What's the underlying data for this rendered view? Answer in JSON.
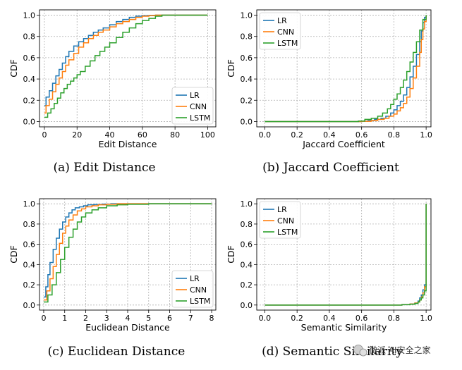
{
  "colors": {
    "LR": "#1f77b4",
    "CNN": "#ff7f0e",
    "LSTM": "#2ca02c",
    "grid": "#b0b0b0"
  },
  "watermark": "微派 AI安全之家",
  "watermark_icon": "wechat-icon",
  "chart_data": [
    {
      "id": "a",
      "type": "line",
      "caption": "(a) Edit Distance",
      "xlabel": "Edit Distance",
      "ylabel": "CDF",
      "xlim": [
        -3,
        105
      ],
      "ylim": [
        -0.05,
        1.05
      ],
      "xticks": [
        0,
        20,
        40,
        60,
        80,
        100
      ],
      "xtick_labels": [
        "0",
        "20",
        "40",
        "60",
        "80",
        "100"
      ],
      "yticks": [
        0.0,
        0.2,
        0.4,
        0.6,
        0.8,
        1.0
      ],
      "ytick_labels": [
        "0.0",
        "0.2",
        "0.4",
        "0.6",
        "0.8",
        "1.0"
      ],
      "grid": true,
      "legend_position": "lower-right",
      "series": [
        {
          "name": "LR",
          "x": [
            0,
            1,
            3,
            5,
            7,
            9,
            11,
            13,
            15,
            18,
            21,
            24,
            27,
            30,
            33,
            36,
            40,
            44,
            48,
            52,
            56,
            60,
            64,
            68,
            100
          ],
          "y": [
            0.15,
            0.23,
            0.29,
            0.36,
            0.43,
            0.49,
            0.55,
            0.61,
            0.66,
            0.71,
            0.75,
            0.78,
            0.81,
            0.84,
            0.86,
            0.88,
            0.91,
            0.94,
            0.96,
            0.98,
            0.99,
            0.995,
            0.998,
            1.0,
            1.0
          ]
        },
        {
          "name": "CNN",
          "x": [
            0,
            1,
            3,
            5,
            7,
            9,
            11,
            13,
            15,
            18,
            21,
            24,
            27,
            30,
            33,
            36,
            40,
            44,
            48,
            52,
            56,
            60,
            64,
            68,
            100
          ],
          "y": [
            0.08,
            0.15,
            0.21,
            0.28,
            0.35,
            0.41,
            0.47,
            0.53,
            0.58,
            0.64,
            0.7,
            0.74,
            0.78,
            0.81,
            0.84,
            0.86,
            0.89,
            0.92,
            0.94,
            0.96,
            0.98,
            0.99,
            0.995,
            1.0,
            1.0
          ]
        },
        {
          "name": "LSTM",
          "x": [
            0,
            2,
            4,
            6,
            8,
            10,
            12,
            14,
            16,
            18,
            20,
            22,
            25,
            28,
            31,
            34,
            37,
            40,
            44,
            48,
            52,
            56,
            60,
            64,
            68,
            72,
            100
          ],
          "y": [
            0.04,
            0.08,
            0.12,
            0.17,
            0.22,
            0.27,
            0.31,
            0.35,
            0.38,
            0.41,
            0.44,
            0.47,
            0.52,
            0.57,
            0.62,
            0.66,
            0.7,
            0.74,
            0.79,
            0.84,
            0.88,
            0.92,
            0.95,
            0.97,
            0.99,
            1.0,
            1.0
          ]
        }
      ]
    },
    {
      "id": "b",
      "type": "line",
      "caption": "(b) Jaccard Coefficient",
      "xlabel": "Jaccard Coefficient",
      "ylabel": "CDF",
      "xlim": [
        -0.05,
        1.03
      ],
      "ylim": [
        -0.05,
        1.05
      ],
      "xticks": [
        0.0,
        0.2,
        0.4,
        0.6,
        0.8,
        1.0
      ],
      "xtick_labels": [
        "0.0",
        "0.2",
        "0.4",
        "0.6",
        "0.8",
        "1.0"
      ],
      "yticks": [
        0.0,
        0.2,
        0.4,
        0.6,
        0.8,
        1.0
      ],
      "ytick_labels": [
        "0.0",
        "0.2",
        "0.4",
        "0.6",
        "0.8",
        "1.0"
      ],
      "grid": true,
      "legend_position": "upper-left",
      "series": [
        {
          "name": "LR",
          "x": [
            0.0,
            0.6,
            0.64,
            0.68,
            0.72,
            0.75,
            0.78,
            0.8,
            0.82,
            0.84,
            0.86,
            0.88,
            0.9,
            0.92,
            0.94,
            0.96,
            0.97,
            0.98,
            0.99,
            1.0
          ],
          "y": [
            0.0,
            0.003,
            0.01,
            0.02,
            0.03,
            0.05,
            0.08,
            0.11,
            0.15,
            0.19,
            0.25,
            0.32,
            0.42,
            0.52,
            0.63,
            0.75,
            0.85,
            0.93,
            0.98,
            1.0
          ]
        },
        {
          "name": "CNN",
          "x": [
            0.0,
            0.6,
            0.66,
            0.7,
            0.74,
            0.77,
            0.8,
            0.82,
            0.84,
            0.86,
            0.88,
            0.9,
            0.92,
            0.94,
            0.96,
            0.97,
            0.98,
            0.99,
            1.0
          ],
          "y": [
            0.0,
            0.002,
            0.01,
            0.02,
            0.03,
            0.05,
            0.07,
            0.1,
            0.13,
            0.17,
            0.23,
            0.31,
            0.41,
            0.52,
            0.65,
            0.77,
            0.87,
            0.94,
            1.0
          ]
        },
        {
          "name": "LSTM",
          "x": [
            0.0,
            0.58,
            0.62,
            0.66,
            0.7,
            0.73,
            0.76,
            0.78,
            0.8,
            0.82,
            0.84,
            0.86,
            0.88,
            0.9,
            0.92,
            0.94,
            0.96,
            0.98,
            1.0
          ],
          "y": [
            0.0,
            0.005,
            0.02,
            0.03,
            0.05,
            0.08,
            0.12,
            0.16,
            0.21,
            0.26,
            0.32,
            0.39,
            0.47,
            0.56,
            0.65,
            0.75,
            0.86,
            0.96,
            1.0
          ]
        }
      ]
    },
    {
      "id": "c",
      "type": "line",
      "caption": "(c) Euclidean Distance",
      "xlabel": "Euclidean Distance",
      "ylabel": "CDF",
      "xlim": [
        -0.2,
        8.2
      ],
      "ylim": [
        -0.05,
        1.05
      ],
      "xticks": [
        0,
        1,
        2,
        3,
        4,
        5,
        6,
        7,
        8
      ],
      "xtick_labels": [
        "0",
        "1",
        "2",
        "3",
        "4",
        "5",
        "6",
        "7",
        "8"
      ],
      "yticks": [
        0.0,
        0.2,
        0.4,
        0.6,
        0.8,
        1.0
      ],
      "ytick_labels": [
        "0.0",
        "0.2",
        "0.4",
        "0.6",
        "0.8",
        "1.0"
      ],
      "grid": true,
      "legend_position": "lower-right",
      "series": [
        {
          "name": "LR",
          "x": [
            0,
            0.1,
            0.2,
            0.3,
            0.45,
            0.6,
            0.75,
            0.9,
            1.05,
            1.2,
            1.35,
            1.5,
            1.7,
            1.9,
            2.1,
            2.4,
            2.8,
            3.2,
            8.0
          ],
          "y": [
            0.08,
            0.18,
            0.3,
            0.42,
            0.55,
            0.66,
            0.75,
            0.82,
            0.87,
            0.91,
            0.94,
            0.96,
            0.97,
            0.98,
            0.99,
            0.993,
            0.997,
            1.0,
            1.0
          ]
        },
        {
          "name": "CNN",
          "x": [
            0,
            0.15,
            0.3,
            0.45,
            0.6,
            0.75,
            0.9,
            1.05,
            1.2,
            1.4,
            1.6,
            1.8,
            2.0,
            2.3,
            2.6,
            3.0,
            3.5,
            8.0
          ],
          "y": [
            0.05,
            0.14,
            0.26,
            0.38,
            0.5,
            0.61,
            0.71,
            0.78,
            0.84,
            0.89,
            0.93,
            0.95,
            0.97,
            0.98,
            0.99,
            0.995,
            1.0,
            1.0
          ]
        },
        {
          "name": "LSTM",
          "x": [
            0,
            0.2,
            0.4,
            0.6,
            0.8,
            1.0,
            1.2,
            1.4,
            1.6,
            1.8,
            2.0,
            2.3,
            2.6,
            3.0,
            3.5,
            4.0,
            5.0,
            8.0
          ],
          "y": [
            0.03,
            0.1,
            0.2,
            0.32,
            0.45,
            0.57,
            0.67,
            0.75,
            0.82,
            0.87,
            0.91,
            0.94,
            0.96,
            0.98,
            0.99,
            0.995,
            1.0,
            1.0
          ]
        }
      ]
    },
    {
      "id": "d",
      "type": "line",
      "caption": "(d) Semantic Similarity",
      "xlabel": "Semantic Similarity",
      "ylabel": "CDF",
      "xlim": [
        -0.05,
        1.03
      ],
      "ylim": [
        -0.05,
        1.05
      ],
      "xticks": [
        0.0,
        0.2,
        0.4,
        0.6,
        0.8,
        1.0
      ],
      "xtick_labels": [
        "0.0",
        "0.2",
        "0.4",
        "0.6",
        "0.8",
        "1.0"
      ],
      "yticks": [
        0.0,
        0.2,
        0.4,
        0.6,
        0.8,
        1.0
      ],
      "ytick_labels": [
        "0.0",
        "0.2",
        "0.4",
        "0.6",
        "0.8",
        "1.0"
      ],
      "grid": true,
      "legend_position": "upper-left",
      "series": [
        {
          "name": "LR",
          "x": [
            0.0,
            0.85,
            0.9,
            0.93,
            0.95,
            0.96,
            0.97,
            0.98,
            0.99,
            1.0
          ],
          "y": [
            0.0,
            0.005,
            0.01,
            0.02,
            0.04,
            0.07,
            0.1,
            0.15,
            0.2,
            1.0
          ]
        },
        {
          "name": "CNN",
          "x": [
            0.0,
            0.85,
            0.9,
            0.93,
            0.95,
            0.96,
            0.97,
            0.98,
            0.99,
            1.0
          ],
          "y": [
            0.0,
            0.004,
            0.01,
            0.02,
            0.03,
            0.05,
            0.08,
            0.12,
            0.18,
            1.0
          ]
        },
        {
          "name": "LSTM",
          "x": [
            0.0,
            0.85,
            0.9,
            0.93,
            0.95,
            0.96,
            0.97,
            0.98,
            0.99,
            1.0
          ],
          "y": [
            0.0,
            0.003,
            0.008,
            0.015,
            0.03,
            0.05,
            0.07,
            0.1,
            0.14,
            1.0
          ]
        }
      ]
    }
  ]
}
